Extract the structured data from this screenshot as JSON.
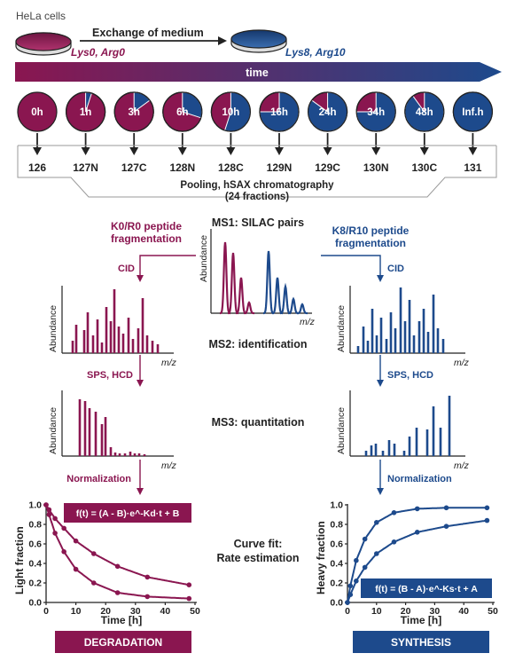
{
  "colors": {
    "maroon": "#8a1650",
    "navy": "#1d4a8c",
    "grey": "#9a9a9a"
  },
  "header": {
    "cells_label": "HeLa cells",
    "exchange_label": "Exchange of medium",
    "light_label": "Lys0, Arg0",
    "heavy_label": "Lys8, Arg10",
    "time_label": "time"
  },
  "timepoints": [
    {
      "label": "0h",
      "heavy": 0.0,
      "channel": "126"
    },
    {
      "label": "1h",
      "heavy": 0.05,
      "channel": "127N"
    },
    {
      "label": "3h",
      "heavy": 0.15,
      "channel": "127C"
    },
    {
      "label": "6h",
      "heavy": 0.3,
      "channel": "128N"
    },
    {
      "label": "10h",
      "heavy": 0.55,
      "channel": "128C"
    },
    {
      "label": "16h",
      "heavy": 0.75,
      "channel": "129N"
    },
    {
      "label": "24h",
      "heavy": 0.85,
      "channel": "129C"
    },
    {
      "label": "34h",
      "heavy": 0.75,
      "channel": "130N"
    },
    {
      "label": "48h",
      "heavy": 0.9,
      "channel": "130C"
    },
    {
      "label": "Inf.h",
      "heavy": 1.0,
      "channel": "131"
    }
  ],
  "pooling": {
    "line1": "Pooling, hSAX chromatography",
    "line2": "(24 fractions)"
  },
  "ms1": {
    "title": "MS1: SILAC pairs",
    "ylabel": "Abundance",
    "xlabel": "m/z"
  },
  "left_branch": {
    "title1": "K0/R0 peptide",
    "title2": "fragmentation",
    "cid": "CID",
    "sps": "SPS, HCD",
    "norm": "Normalization",
    "ylabel": "Abundance",
    "xlabel": "m/z"
  },
  "right_branch": {
    "title1": "K8/R10 peptide",
    "title2": "fragmentation",
    "cid": "CID",
    "sps": "SPS, HCD",
    "norm": "Normalization",
    "ylabel": "Abundance",
    "xlabel": "m/z"
  },
  "center_labels": {
    "ms2": "MS2: identification",
    "ms3": "MS3: quantitation",
    "fit1": "Curve fit:",
    "fit2": "Rate estimation"
  },
  "degradation": {
    "formula": "f(t) = (A - B)·e^-Kd·t + B",
    "ylabel": "Light fraction",
    "xlabel": "Time [h]",
    "banner": "DEGRADATION",
    "xticks": [
      "0",
      "10",
      "20",
      "30",
      "40",
      "50"
    ],
    "yticks": [
      "0.0",
      "0.2",
      "0.4",
      "0.6",
      "0.8",
      "1.0"
    ]
  },
  "synthesis": {
    "formula": "f(t) = (B - A)·e^-Ks·t + A",
    "ylabel": "Heavy fraction",
    "xlabel": "Time [h]",
    "banner": "SYNTHESIS",
    "xticks": [
      "0",
      "10",
      "20",
      "30",
      "40",
      "50"
    ],
    "yticks": [
      "0.0",
      "0.2",
      "0.4",
      "0.6",
      "0.8",
      "1.0"
    ]
  },
  "chart_data": [
    {
      "type": "scatter",
      "name": "degradation",
      "xlabel": "Time [h]",
      "ylabel": "Light fraction",
      "xlim": [
        0,
        50
      ],
      "ylim": [
        0,
        1
      ],
      "series": [
        {
          "x": [
            0,
            1,
            3,
            6,
            10,
            16,
            24,
            34,
            48
          ],
          "y": [
            1.0,
            0.95,
            0.86,
            0.76,
            0.63,
            0.5,
            0.37,
            0.26,
            0.18
          ]
        },
        {
          "x": [
            0,
            1,
            3,
            6,
            10,
            16,
            24,
            34,
            48
          ],
          "y": [
            1.0,
            0.9,
            0.71,
            0.52,
            0.34,
            0.2,
            0.1,
            0.06,
            0.04
          ]
        }
      ]
    },
    {
      "type": "scatter",
      "name": "synthesis",
      "xlabel": "Time [h]",
      "ylabel": "Heavy fraction",
      "xlim": [
        0,
        50
      ],
      "ylim": [
        0,
        1
      ],
      "series": [
        {
          "x": [
            0,
            1,
            3,
            6,
            10,
            16,
            24,
            34,
            48
          ],
          "y": [
            0.0,
            0.17,
            0.43,
            0.65,
            0.82,
            0.92,
            0.96,
            0.97,
            0.97
          ]
        },
        {
          "x": [
            0,
            1,
            3,
            6,
            10,
            16,
            24,
            34,
            48
          ],
          "y": [
            0.0,
            0.08,
            0.22,
            0.36,
            0.5,
            0.62,
            0.72,
            0.78,
            0.84
          ]
        }
      ]
    }
  ]
}
